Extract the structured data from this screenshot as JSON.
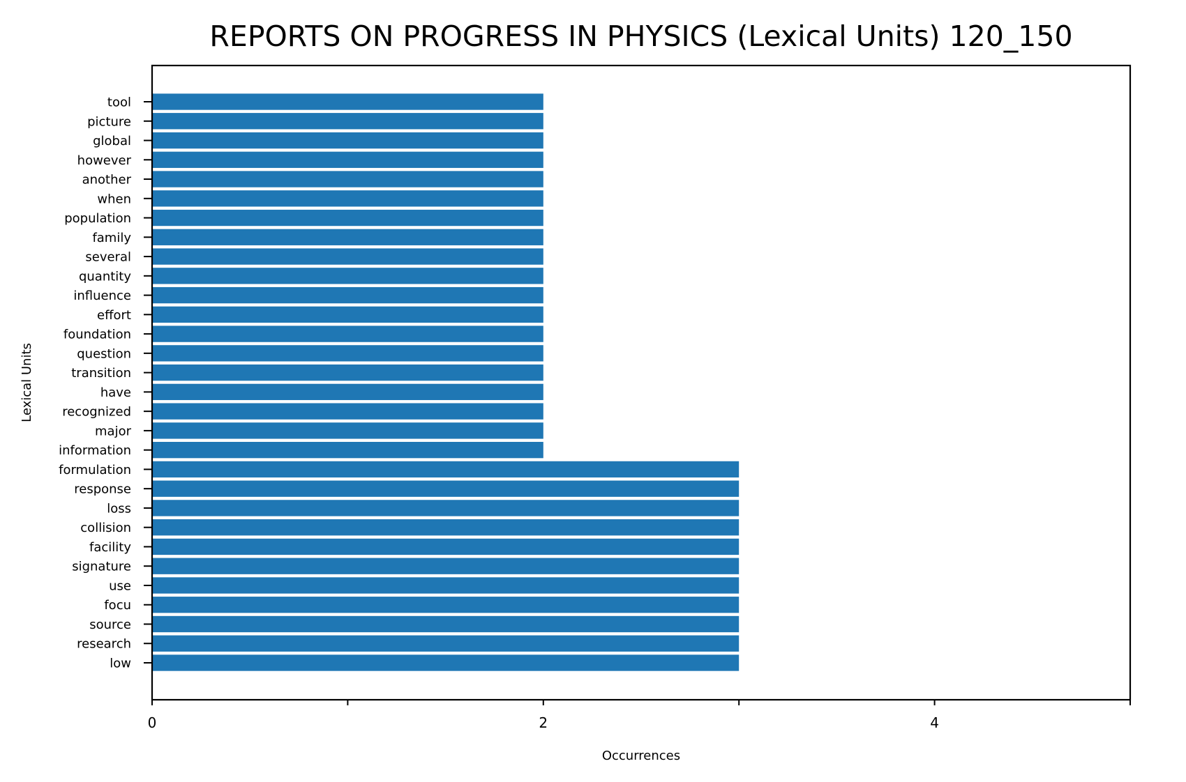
{
  "chart_data": {
    "type": "bar",
    "orientation": "horizontal",
    "title": "REPORTS ON PROGRESS IN PHYSICS (Lexical Units) 120_150",
    "xlabel": "Occurrences",
    "ylabel": "Lexical Units",
    "xlim": [
      0,
      5
    ],
    "xticks": [
      0,
      1,
      2,
      3,
      4,
      5
    ],
    "xtick_labels": [
      "0",
      "",
      "2",
      "",
      "4",
      ""
    ],
    "grid": false,
    "legend": "none",
    "bar_color": "#1f77b4",
    "categories": [
      "tool",
      "picture",
      "global",
      "however",
      "another",
      "when",
      "population",
      "family",
      "several",
      "quantity",
      "influence",
      "effort",
      "foundation",
      "question",
      "transition",
      "have",
      "recognized",
      "major",
      "information",
      "formulation",
      "response",
      "loss",
      "collision",
      "facility",
      "signature",
      "use",
      "focu",
      "source",
      "research",
      "low"
    ],
    "values": [
      2,
      2,
      2,
      2,
      2,
      2,
      2,
      2,
      2,
      2,
      2,
      2,
      2,
      2,
      2,
      2,
      2,
      2,
      2,
      3,
      3,
      3,
      3,
      3,
      3,
      3,
      3,
      3,
      3,
      3
    ]
  }
}
